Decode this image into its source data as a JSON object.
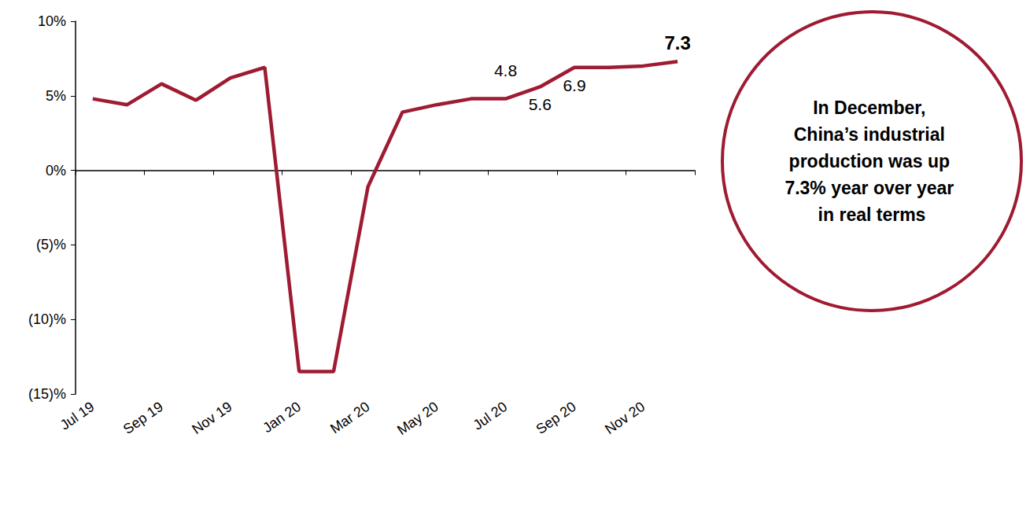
{
  "chart_data": {
    "type": "line",
    "categories": [
      "Jul 19",
      null,
      "Sep 19",
      null,
      "Nov 19",
      null,
      "Jan 20",
      null,
      "Mar 20",
      null,
      "May 20",
      null,
      "Jul 20",
      null,
      "Sep 20",
      null,
      "Nov 20",
      null
    ],
    "values": [
      4.8,
      4.4,
      5.8,
      4.7,
      6.2,
      6.9,
      -13.5,
      -13.5,
      -1.1,
      3.9,
      4.4,
      4.8,
      4.8,
      5.6,
      6.9,
      6.9,
      7.0,
      7.3
    ],
    "value_labels": [
      null,
      null,
      null,
      null,
      null,
      null,
      null,
      null,
      null,
      null,
      null,
      null,
      "4.8",
      "5.6",
      "6.9",
      null,
      null,
      "7.3"
    ],
    "color": "#9e1b32",
    "ylim": [
      -15,
      10
    ],
    "yticks": [
      {
        "value": -15,
        "label": "(15)%"
      },
      {
        "value": -10,
        "label": "(10)%"
      },
      {
        "value": -5,
        "label": "(5)%"
      },
      {
        "value": 0,
        "label": "0%"
      },
      {
        "value": 5,
        "label": "5%"
      },
      {
        "value": 10,
        "label": "10%"
      }
    ],
    "grid": false,
    "data_labels": true,
    "annotation": "In December, China’s industrial production was up 7.3% year over year in real terms"
  }
}
